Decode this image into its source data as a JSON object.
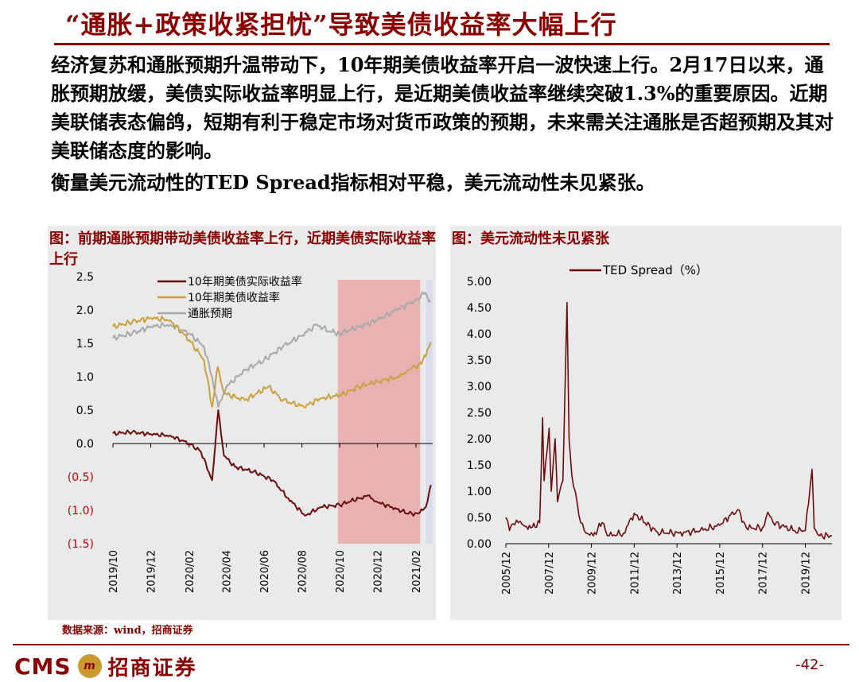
{
  "header": {
    "title": "“通胀+政策收紧担忧”导致美债收益率大幅上行"
  },
  "body_text": {
    "paragraph1": "经济复苏和通胀预期升温带动下，10年期美债收益率开启一波快速上行。2月17日以来，通胀预期放缓，美债实际收益率明显上行，是近期美债收益率继续突破1.3%的重要原因。近期美联储表态偏鸽，短期有利于稳定市场对货币政策的预期，未来需关注通胀是否超预期及其对美联储态度的影响。",
    "paragraph2": "衡量美元流动性的TED Spread指标相对平稳，美元流动性未见紧张。"
  },
  "colors": {
    "brand_red": "#8b0000",
    "series_real": "#6b0d0d",
    "series_yield": "#c9a23f",
    "series_inflation": "#a8a8a8",
    "highlight_red": "#e8a8a8",
    "highlight_blue": "#d6dcee"
  },
  "chart_data": [
    {
      "type": "line",
      "title": "图：前期通胀预期带动美债收益率上行，近期美债实际收益率上行",
      "yticks": [
        "2.5",
        "2.0",
        "1.5",
        "1.0",
        "0.5",
        "0.0",
        "(0.5)",
        "(1.0)",
        "(1.5)"
      ],
      "ylim": [
        -1.5,
        2.5
      ],
      "xlabels": [
        "2019/10",
        "2019/12",
        "2020/02",
        "2020/04",
        "2020/06",
        "2020/08",
        "2020/10",
        "2020/12",
        "2021/02"
      ],
      "xlim": [
        "2019-10-01",
        "2021-02-28"
      ],
      "legend": "top-center",
      "shaded_ranges": [
        {
          "from": "2020-09-28",
          "to": "2021-02-08",
          "color": "red"
        },
        {
          "from": "2021-02-17",
          "to": "2021-02-28",
          "color": "blue"
        }
      ],
      "series": [
        {
          "name": "10年期美债实际收益率",
          "color": "series_real",
          "points": [
            [
              "2019-10-01",
              0.15
            ],
            [
              "2019-11-01",
              0.17
            ],
            [
              "2019-12-01",
              0.14
            ],
            [
              "2020-01-01",
              0.12
            ],
            [
              "2020-02-01",
              0.0
            ],
            [
              "2020-02-20",
              -0.12
            ],
            [
              "2020-03-09",
              -0.55
            ],
            [
              "2020-03-19",
              0.5
            ],
            [
              "2020-03-28",
              -0.18
            ],
            [
              "2020-04-15",
              -0.35
            ],
            [
              "2020-05-15",
              -0.42
            ],
            [
              "2020-06-15",
              -0.55
            ],
            [
              "2020-07-10",
              -0.82
            ],
            [
              "2020-08-06",
              -1.08
            ],
            [
              "2020-09-01",
              -0.95
            ],
            [
              "2020-10-01",
              -0.92
            ],
            [
              "2020-11-01",
              -0.82
            ],
            [
              "2020-11-15",
              -0.78
            ],
            [
              "2020-12-01",
              -0.88
            ],
            [
              "2021-01-01",
              -0.98
            ],
            [
              "2021-01-20",
              -1.05
            ],
            [
              "2021-02-05",
              -1.05
            ],
            [
              "2021-02-17",
              -0.95
            ],
            [
              "2021-02-25",
              -0.62
            ]
          ]
        },
        {
          "name": "10年期美债收益率",
          "color": "series_yield",
          "points": [
            [
              "2019-10-01",
              1.75
            ],
            [
              "2019-11-01",
              1.82
            ],
            [
              "2019-12-01",
              1.88
            ],
            [
              "2020-01-01",
              1.85
            ],
            [
              "2020-02-01",
              1.55
            ],
            [
              "2020-02-25",
              1.25
            ],
            [
              "2020-03-09",
              0.55
            ],
            [
              "2020-03-18",
              1.15
            ],
            [
              "2020-03-28",
              0.75
            ],
            [
              "2020-05-01",
              0.65
            ],
            [
              "2020-06-08",
              0.85
            ],
            [
              "2020-07-01",
              0.65
            ],
            [
              "2020-08-04",
              0.55
            ],
            [
              "2020-09-01",
              0.68
            ],
            [
              "2020-10-01",
              0.72
            ],
            [
              "2020-11-01",
              0.85
            ],
            [
              "2020-12-01",
              0.93
            ],
            [
              "2021-01-05",
              1.0
            ],
            [
              "2021-01-20",
              1.1
            ],
            [
              "2021-02-05",
              1.18
            ],
            [
              "2021-02-17",
              1.3
            ],
            [
              "2021-02-25",
              1.52
            ]
          ]
        },
        {
          "name": "通胀预期",
          "color": "series_inflation",
          "points": [
            [
              "2019-10-01",
              1.58
            ],
            [
              "2019-11-01",
              1.65
            ],
            [
              "2019-12-01",
              1.75
            ],
            [
              "2020-01-01",
              1.78
            ],
            [
              "2020-02-01",
              1.65
            ],
            [
              "2020-02-25",
              1.45
            ],
            [
              "2020-03-09",
              1.0
            ],
            [
              "2020-03-19",
              0.55
            ],
            [
              "2020-04-01",
              0.85
            ],
            [
              "2020-05-01",
              1.1
            ],
            [
              "2020-06-01",
              1.25
            ],
            [
              "2020-07-01",
              1.45
            ],
            [
              "2020-08-01",
              1.62
            ],
            [
              "2020-08-25",
              1.78
            ],
            [
              "2020-09-15",
              1.68
            ],
            [
              "2020-10-01",
              1.65
            ],
            [
              "2020-11-01",
              1.75
            ],
            [
              "2020-12-01",
              1.85
            ],
            [
              "2021-01-01",
              2.0
            ],
            [
              "2021-02-01",
              2.15
            ],
            [
              "2021-02-14",
              2.24
            ],
            [
              "2021-02-25",
              2.14
            ]
          ]
        }
      ]
    },
    {
      "type": "line",
      "title": "图：美元流动性未见紧张",
      "yticks": [
        "5.00",
        "4.50",
        "4.00",
        "3.50",
        "3.00",
        "2.50",
        "2.00",
        "1.50",
        "1.00",
        "0.50",
        "0.00"
      ],
      "ylim": [
        0,
        5
      ],
      "xlabels": [
        "2005/12",
        "2007/12",
        "2009/12",
        "2011/12",
        "2013/12",
        "2015/12",
        "2017/12",
        "2019/12"
      ],
      "xlim": [
        "2005-12-01",
        "2021-02-28"
      ],
      "legend": "top-center",
      "series": [
        {
          "name": "TED Spread（%）",
          "color": "series_real",
          "points": [
            [
              "2005-12-01",
              0.5
            ],
            [
              "2006-02-01",
              0.25
            ],
            [
              "2006-06-01",
              0.45
            ],
            [
              "2006-10-01",
              0.35
            ],
            [
              "2007-02-01",
              0.3
            ],
            [
              "2007-07-01",
              0.4
            ],
            [
              "2007-08-20",
              2.4
            ],
            [
              "2007-09-15",
              1.2
            ],
            [
              "2007-12-10",
              2.2
            ],
            [
              "2008-01-15",
              1.0
            ],
            [
              "2008-03-20",
              2.0
            ],
            [
              "2008-05-01",
              0.8
            ],
            [
              "2008-08-01",
              1.2
            ],
            [
              "2008-10-10",
              4.6
            ],
            [
              "2008-11-15",
              2.0
            ],
            [
              "2009-01-01",
              1.3
            ],
            [
              "2009-03-01",
              1.0
            ],
            [
              "2009-06-01",
              0.4
            ],
            [
              "2009-09-01",
              0.2
            ],
            [
              "2010-01-01",
              0.15
            ],
            [
              "2010-06-01",
              0.4
            ],
            [
              "2010-09-01",
              0.15
            ],
            [
              "2011-06-01",
              0.2
            ],
            [
              "2011-12-01",
              0.58
            ],
            [
              "2012-06-01",
              0.4
            ],
            [
              "2013-01-01",
              0.22
            ],
            [
              "2014-01-01",
              0.2
            ],
            [
              "2015-01-01",
              0.25
            ],
            [
              "2015-12-01",
              0.35
            ],
            [
              "2016-06-01",
              0.55
            ],
            [
              "2016-10-01",
              0.65
            ],
            [
              "2017-03-01",
              0.3
            ],
            [
              "2017-12-01",
              0.3
            ],
            [
              "2018-03-01",
              0.6
            ],
            [
              "2018-06-01",
              0.4
            ],
            [
              "2019-06-01",
              0.25
            ],
            [
              "2019-12-01",
              0.25
            ],
            [
              "2020-03-25",
              1.42
            ],
            [
              "2020-05-01",
              0.3
            ],
            [
              "2020-08-01",
              0.15
            ],
            [
              "2021-02-28",
              0.15
            ]
          ]
        }
      ]
    }
  ],
  "source": "数据来源：wind，招商证券",
  "footer": {
    "logo_text": "CMS",
    "logo_badge": "m",
    "logo_cn": "招商证券",
    "page_number": "-42-"
  }
}
